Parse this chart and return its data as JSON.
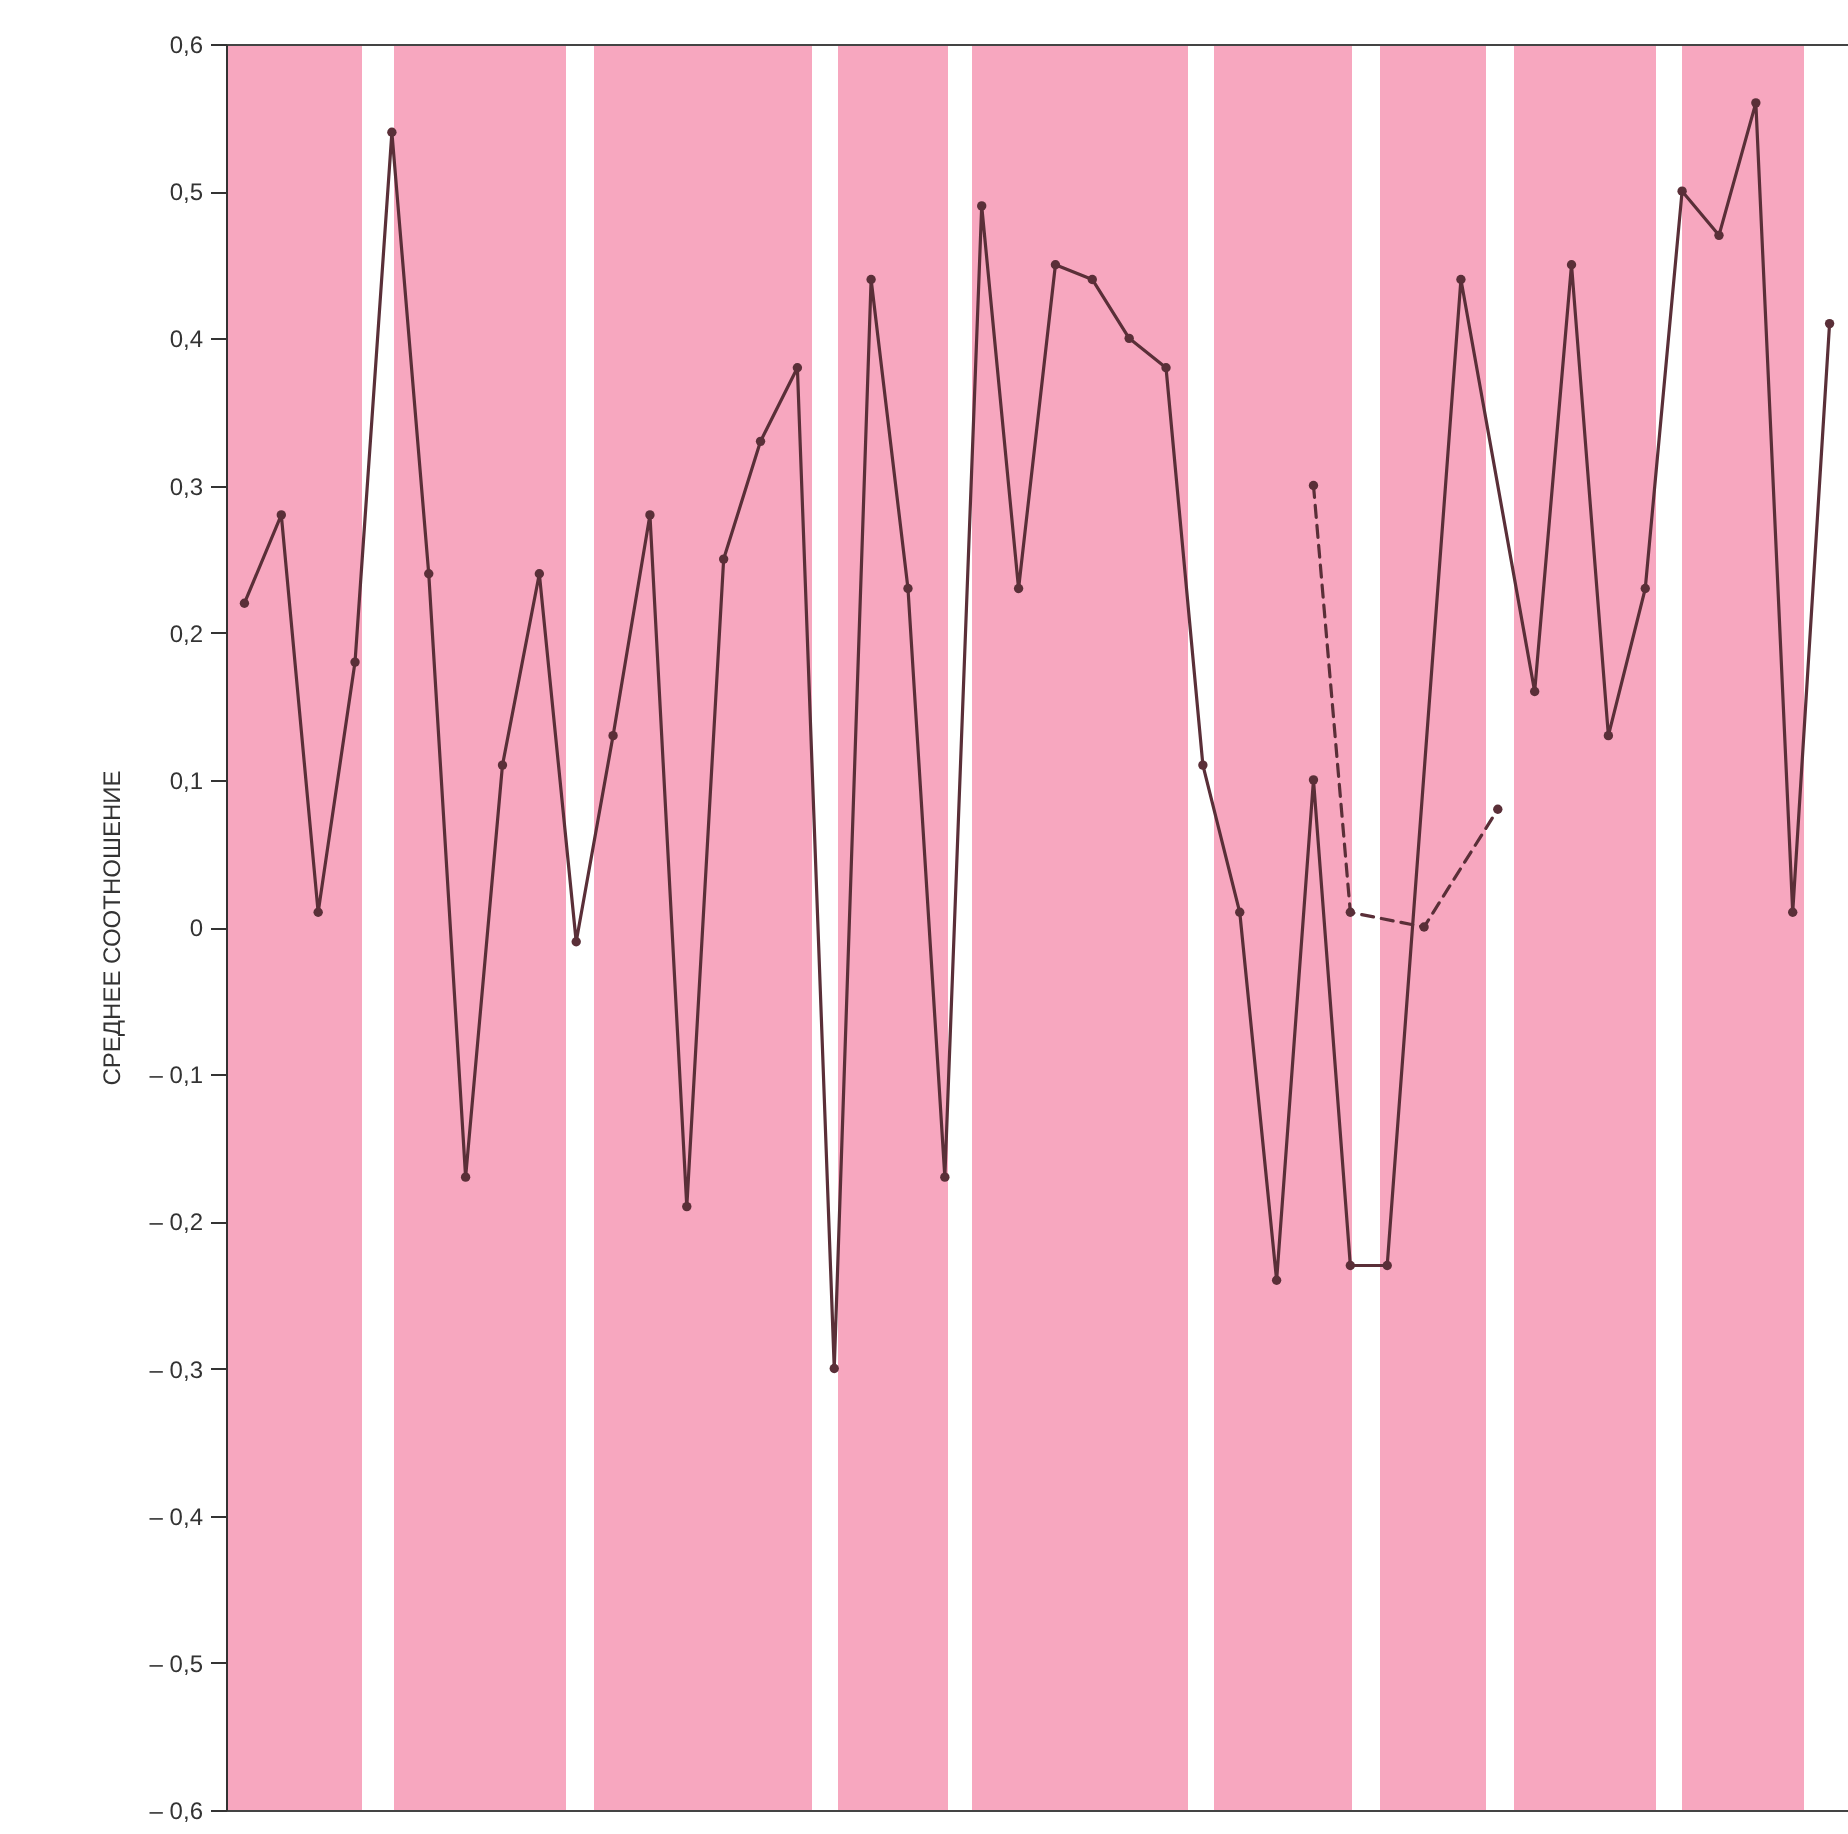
{
  "chart_data": {
    "type": "line",
    "ylabel": "СРЕДНЕЕ СООТНОШЕНИЕ",
    "categories": [
      null,
      null,
      null,
      null,
      null,
      null,
      null,
      null,
      null,
      null,
      null,
      null,
      null,
      null,
      null,
      null,
      null,
      null,
      null,
      null,
      null,
      null,
      null,
      null,
      null,
      null,
      null,
      null,
      null,
      null,
      null,
      null,
      null,
      null,
      null,
      null,
      null,
      null,
      null,
      null,
      null,
      null,
      null,
      null
    ],
    "ylim": [
      -0.6,
      0.6
    ],
    "yticks": [
      {
        "value": -0.6,
        "label": "– 0,6"
      },
      {
        "value": -0.5,
        "label": "– 0,5"
      },
      {
        "value": -0.4,
        "label": "– 0,4"
      },
      {
        "value": -0.3,
        "label": "– 0,3"
      },
      {
        "value": -0.2,
        "label": "– 0,2"
      },
      {
        "value": -0.1,
        "label": "– 0,1"
      },
      0,
      {
        "value": 0.1,
        "label": "0,1"
      },
      {
        "value": 0.2,
        "label": "0,2"
      },
      {
        "value": 0.3,
        "label": "0,3"
      },
      {
        "value": 0.4,
        "label": "0,4"
      },
      {
        "value": 0.5,
        "label": "0,5"
      },
      {
        "value": 0.6,
        "label": "0,6"
      }
    ],
    "tick_labels": "y",
    "marker": "circle",
    "series": [
      {
        "color": "#5a2f38",
        "line_style": "solid",
        "values": [
          0.22,
          0.28,
          0.01,
          0.18,
          0.54,
          0.24,
          -0.17,
          0.11,
          0.24,
          -0.01,
          0.13,
          0.28,
          -0.19,
          0.25,
          0.33,
          0.38,
          -0.3,
          0.44,
          0.23,
          -0.17,
          0.49,
          0.23,
          0.45,
          0.44,
          0.4,
          0.38,
          0.11,
          0.01,
          -0.24,
          0.1,
          -0.23,
          -0.23,
          null,
          0.44,
          null,
          0.16,
          0.45,
          0.13,
          0.23,
          0.5,
          0.47,
          0.56,
          0.01,
          0.41
        ]
      },
      {
        "color": "#5a2f38",
        "line_style": "dashed",
        "values": [
          null,
          null,
          null,
          null,
          null,
          null,
          null,
          null,
          null,
          null,
          null,
          null,
          null,
          null,
          null,
          null,
          null,
          null,
          null,
          null,
          null,
          null,
          null,
          null,
          null,
          null,
          null,
          null,
          null,
          0.3,
          0.01,
          null,
          0.0,
          null,
          0.08,
          null,
          null,
          null,
          null,
          null,
          null,
          null,
          null,
          null
        ]
      }
    ]
  }
}
